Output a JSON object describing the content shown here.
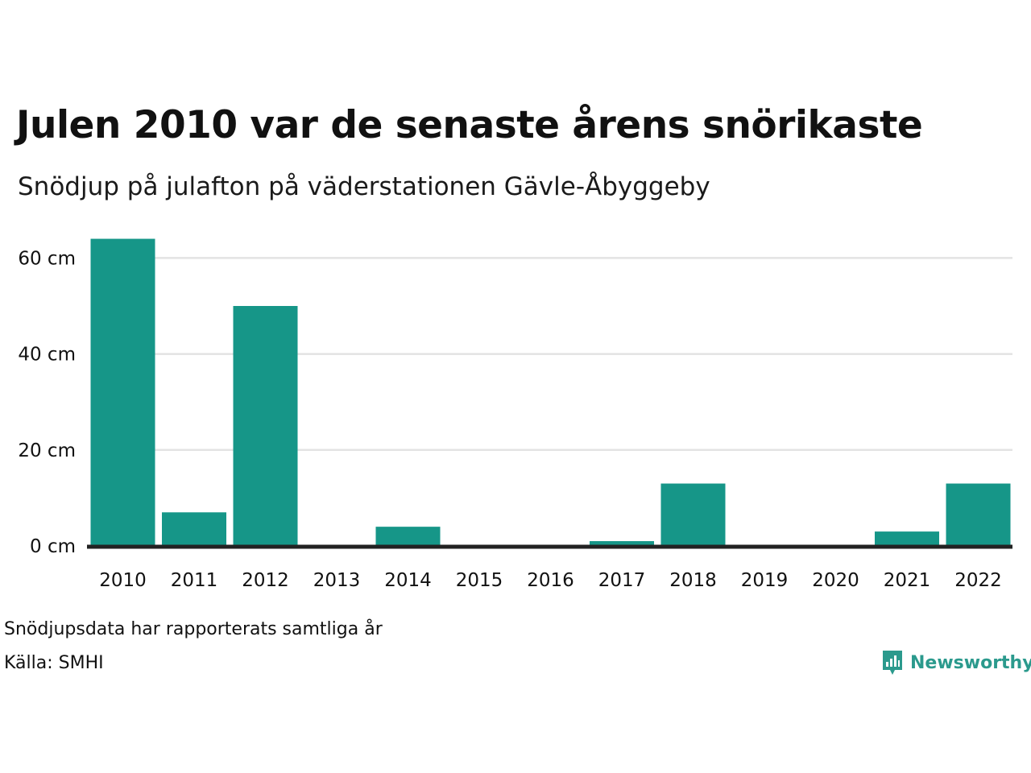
{
  "header": {
    "title": "Julen 2010 var de senaste årens snörikaste",
    "subtitle": "Snödjup på julafton på väderstationen Gävle-Åbyggeby"
  },
  "footer": {
    "note": "Snödjupsdata har rapporterats samtliga år",
    "source": "Källa: SMHI",
    "brand": "Newsworthy"
  },
  "colors": {
    "bar": "#169688",
    "grid": "#e3e3e3",
    "baseline": "#222222",
    "brand": "#2b9a8d"
  },
  "chart_data": {
    "type": "bar",
    "categories": [
      "2010",
      "2011",
      "2012",
      "2013",
      "2014",
      "2015",
      "2016",
      "2017",
      "2018",
      "2019",
      "2020",
      "2021",
      "2022"
    ],
    "values": [
      64,
      7,
      50,
      0,
      4,
      0,
      0,
      1,
      13,
      0,
      0,
      3,
      13
    ],
    "ylim": [
      0,
      64
    ],
    "yticks": [
      0,
      20,
      40,
      60
    ],
    "ytick_labels": [
      "0 cm",
      "20 cm",
      "40 cm",
      "60 cm"
    ],
    "grid": true,
    "legend": "none"
  }
}
